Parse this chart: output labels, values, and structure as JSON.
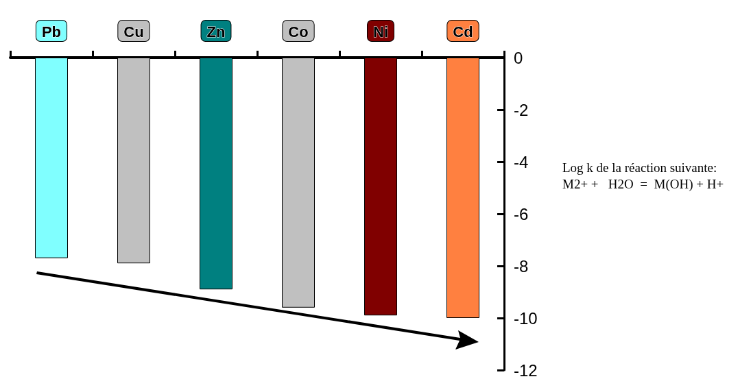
{
  "chart_data": {
    "type": "bar",
    "categories": [
      "Pb",
      "Cu",
      "Zn",
      "Co",
      "Ni",
      "Cd"
    ],
    "values": [
      -7.7,
      -7.9,
      -8.9,
      -9.6,
      -9.9,
      -10.0
    ],
    "colors": [
      "#80ffff",
      "#c0c0c0",
      "#008080",
      "#c0c0c0",
      "#800000",
      "#ff8040"
    ],
    "ylim": [
      -12,
      0
    ],
    "yticks": [
      -12,
      -10,
      -8,
      -6,
      -4,
      -2,
      0
    ],
    "grid": false,
    "annotations": [
      "Log k de la réaction suivante: M2+ +   H2O  =  M(OH) + H+"
    ]
  }
}
